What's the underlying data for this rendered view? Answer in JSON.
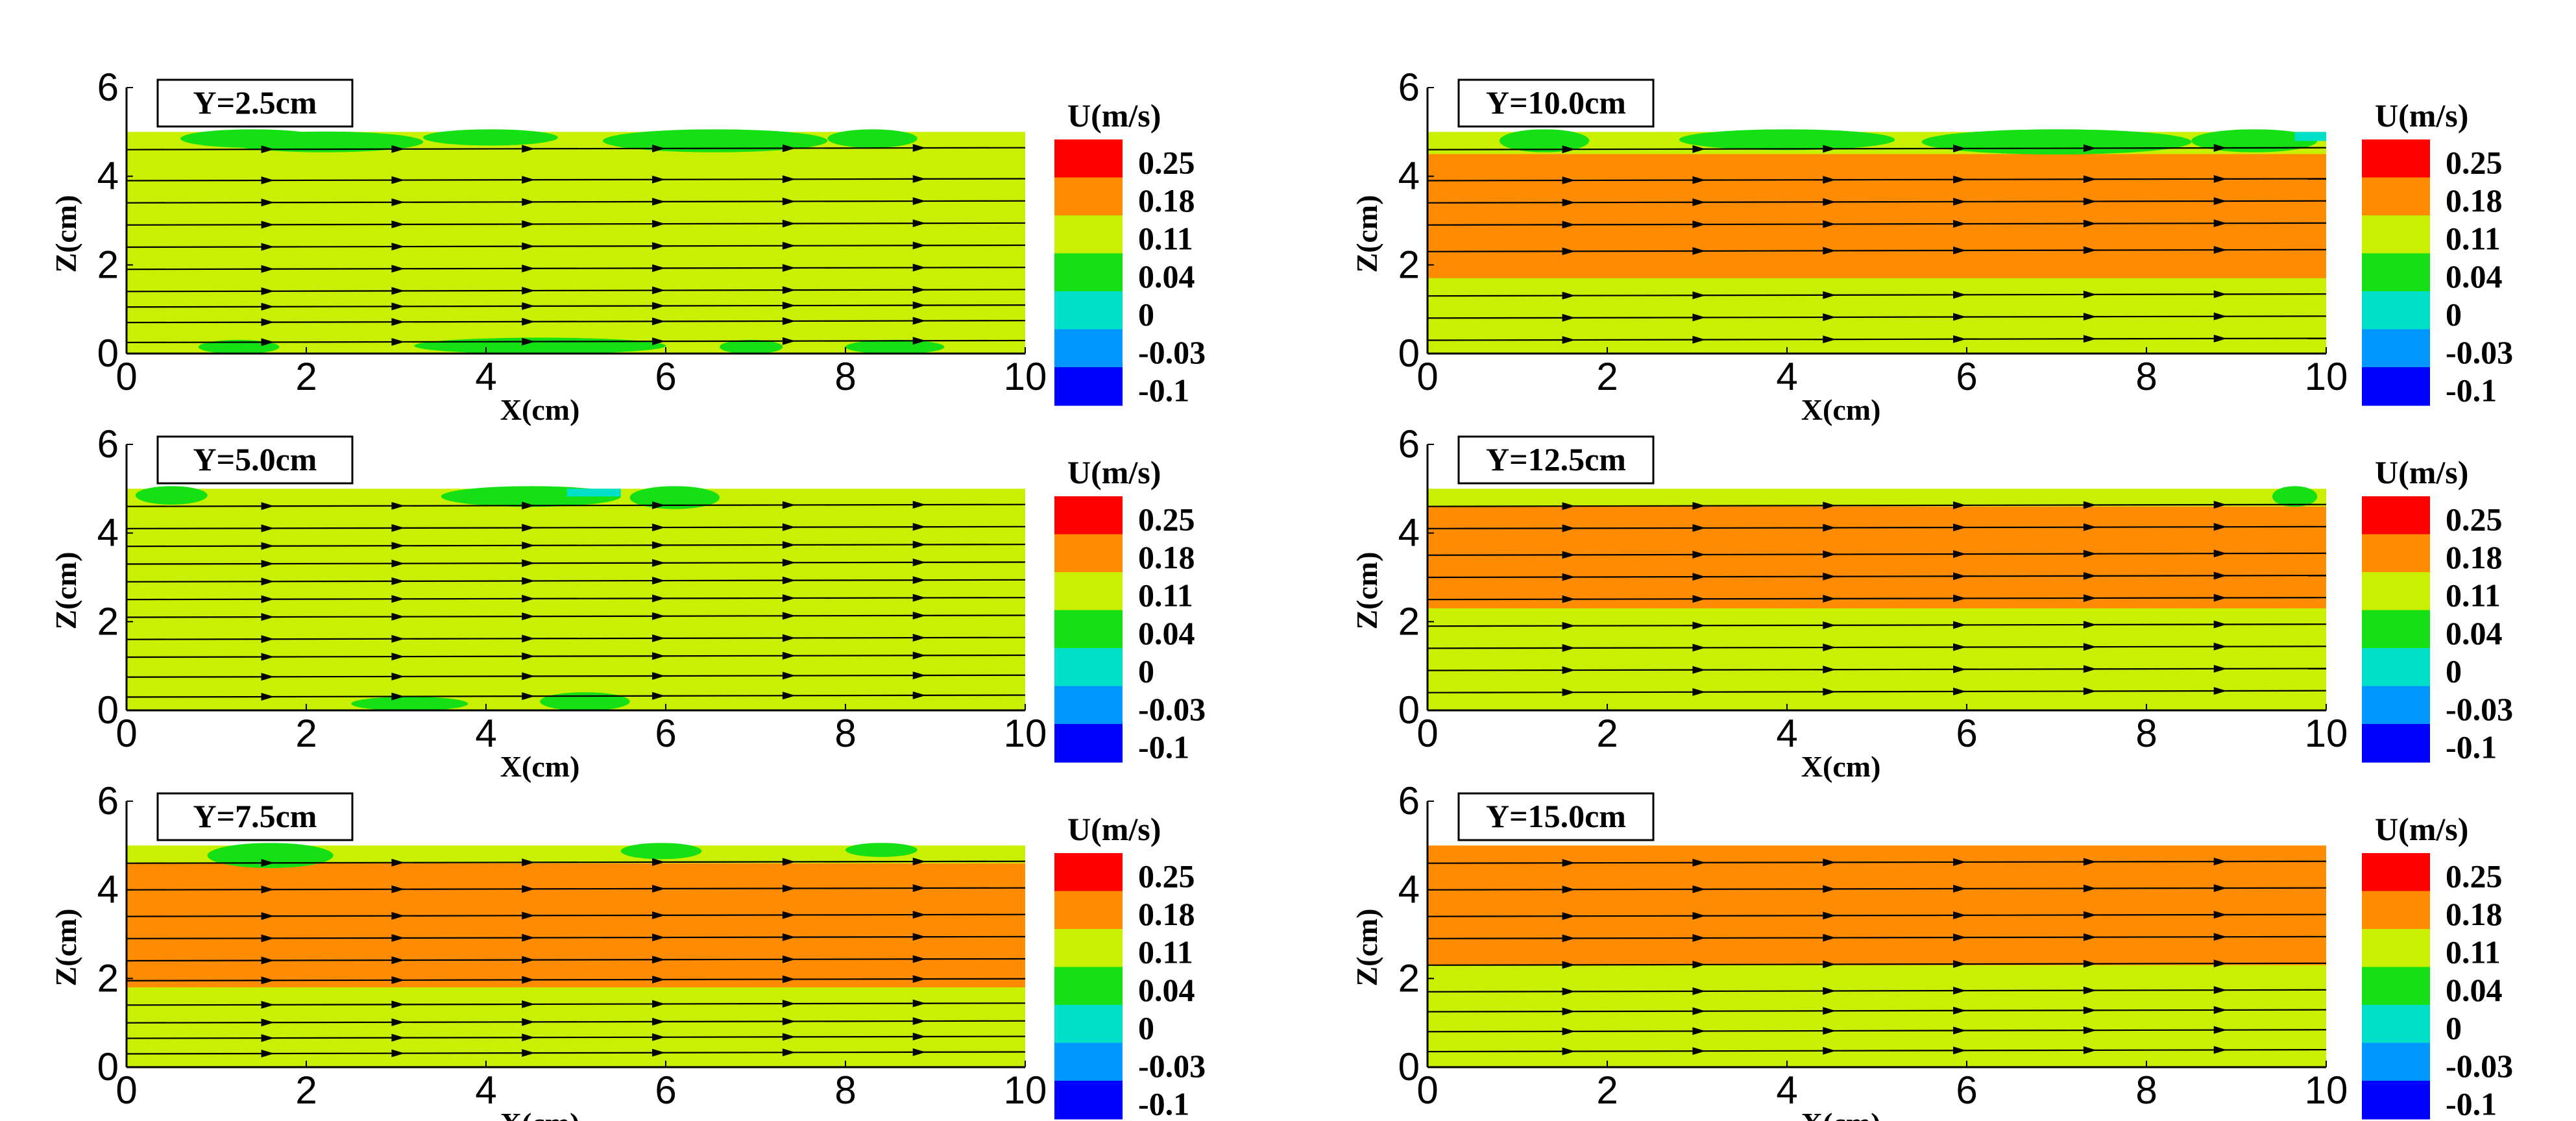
{
  "figure": {
    "x_axis_label": "X(cm)",
    "z_axis_label": "Z(cm)",
    "colorbar_title": "U(m/s)",
    "x_ticks": [
      "0",
      "2",
      "4",
      "6",
      "8",
      "10"
    ],
    "z_ticks": [
      "0",
      "2",
      "4",
      "6"
    ],
    "colorbar_levels": [
      "0.25",
      "0.18",
      "0.11",
      "0.04",
      "0",
      "-0.03",
      "-0.1"
    ],
    "colorbar_colors": [
      "#ff0000",
      "#ff8c00",
      "#c8f000",
      "#14e014",
      "#00e0c8",
      "#0096ff",
      "#0000ff"
    ],
    "field_colors": {
      "yellow_green": "#c8f000",
      "orange": "#ff8c00",
      "green": "#14e014",
      "cyan": "#00e0c8"
    }
  },
  "chart_data": [
    {
      "type": "heatmap",
      "title": "Y=2.5cm",
      "xlabel": "X(cm)",
      "ylabel": "Z(cm)",
      "xlim": [
        0,
        10
      ],
      "ylim": [
        0,
        6
      ],
      "domain_z": [
        0,
        5
      ],
      "colorbar": {
        "title": "U(m/s)",
        "levels": [
          0.25,
          0.18,
          0.11,
          0.04,
          0,
          -0.03,
          -0.1
        ]
      },
      "regions": [
        {
          "band": "full",
          "z": [
            0,
            5
          ],
          "u_level": "0.11-0.18",
          "color": "#c8f000"
        },
        {
          "band": "top-patches",
          "u_level": "0.04-0.11",
          "color": "#14e014"
        },
        {
          "band": "bottom-patches",
          "u_level": "0.04-0.11",
          "color": "#14e014"
        }
      ],
      "streamline_z": [
        0.25,
        0.7,
        1.05,
        1.4,
        1.9,
        2.4,
        2.9,
        3.4,
        3.9,
        4.6
      ]
    },
    {
      "type": "heatmap",
      "title": "Y=10.0cm",
      "xlabel": "X(cm)",
      "ylabel": "Z(cm)",
      "xlim": [
        0,
        10
      ],
      "ylim": [
        0,
        6
      ],
      "domain_z": [
        0,
        5
      ],
      "colorbar": {
        "title": "U(m/s)",
        "levels": [
          0.25,
          0.18,
          0.11,
          0.04,
          0,
          -0.03,
          -0.1
        ]
      },
      "regions": [
        {
          "band": "lower",
          "z": [
            0,
            1.7
          ],
          "u_level": "0.11-0.18",
          "color": "#c8f000"
        },
        {
          "band": "middle",
          "z": [
            1.7,
            4.5
          ],
          "u_level": "0.18-0.25",
          "color": "#ff8c00"
        },
        {
          "band": "upper",
          "z": [
            4.5,
            5
          ],
          "u_level": "0.11-0.18",
          "color": "#c8f000"
        },
        {
          "band": "top-patches",
          "u_level": "0.04-0.11",
          "color": "#14e014"
        }
      ],
      "streamline_z": [
        0.3,
        0.8,
        1.3,
        2.3,
        2.9,
        3.4,
        3.9,
        4.6
      ]
    },
    {
      "type": "heatmap",
      "title": "Y=5.0cm",
      "xlabel": "X(cm)",
      "ylabel": "Z(cm)",
      "xlim": [
        0,
        10
      ],
      "ylim": [
        0,
        6
      ],
      "domain_z": [
        0,
        5
      ],
      "colorbar": {
        "title": "U(m/s)",
        "levels": [
          0.25,
          0.18,
          0.11,
          0.04,
          0,
          -0.03,
          -0.1
        ]
      },
      "regions": [
        {
          "band": "full",
          "z": [
            0,
            5
          ],
          "u_level": "0.11-0.18",
          "color": "#c8f000"
        },
        {
          "band": "top-patches",
          "u_level": "0.04-0.11",
          "color": "#14e014"
        },
        {
          "band": "bottom-patches",
          "u_level": "0.04-0.11",
          "color": "#14e014"
        }
      ],
      "streamline_z": [
        0.3,
        0.75,
        1.2,
        1.6,
        2.1,
        2.5,
        2.9,
        3.3,
        3.7,
        4.1,
        4.6
      ]
    },
    {
      "type": "heatmap",
      "title": "Y=12.5cm",
      "xlabel": "X(cm)",
      "ylabel": "Z(cm)",
      "xlim": [
        0,
        10
      ],
      "ylim": [
        0,
        6
      ],
      "domain_z": [
        0,
        5
      ],
      "colorbar": {
        "title": "U(m/s)",
        "levels": [
          0.25,
          0.18,
          0.11,
          0.04,
          0,
          -0.03,
          -0.1
        ]
      },
      "regions": [
        {
          "band": "lower",
          "z": [
            0,
            2.3
          ],
          "u_level": "0.11-0.18",
          "color": "#c8f000"
        },
        {
          "band": "middle",
          "z": [
            2.3,
            4.6
          ],
          "u_level": "0.18-0.25",
          "color": "#ff8c00"
        },
        {
          "band": "upper",
          "z": [
            4.6,
            5
          ],
          "u_level": "0.11-0.18",
          "color": "#c8f000"
        },
        {
          "band": "top-patch",
          "u_level": "0.04-0.11",
          "color": "#14e014"
        }
      ],
      "streamline_z": [
        0.4,
        0.9,
        1.4,
        1.9,
        2.5,
        3.0,
        3.5,
        4.1,
        4.6
      ]
    },
    {
      "type": "heatmap",
      "title": "Y=7.5cm",
      "xlabel": "X(cm)",
      "ylabel": "Z(cm)",
      "xlim": [
        0,
        10
      ],
      "ylim": [
        0,
        6
      ],
      "domain_z": [
        0,
        5
      ],
      "colorbar": {
        "title": "U(m/s)",
        "levels": [
          0.25,
          0.18,
          0.11,
          0.04,
          0,
          -0.03,
          -0.1
        ]
      },
      "regions": [
        {
          "band": "lower",
          "z": [
            0,
            1.8
          ],
          "u_level": "0.11-0.18",
          "color": "#c8f000"
        },
        {
          "band": "middle",
          "z": [
            1.8,
            4.6
          ],
          "u_level": "0.18-0.25",
          "color": "#ff8c00"
        },
        {
          "band": "upper",
          "z": [
            4.6,
            5
          ],
          "u_level": "0.11-0.18",
          "color": "#c8f000"
        },
        {
          "band": "top-patch",
          "u_level": "0.04-0.11",
          "color": "#14e014"
        }
      ],
      "streamline_z": [
        0.3,
        0.65,
        1.0,
        1.4,
        1.95,
        2.4,
        2.9,
        3.4,
        4.0,
        4.6
      ]
    },
    {
      "type": "heatmap",
      "title": "Y=15.0cm",
      "xlabel": "X(cm)",
      "ylabel": "Z(cm)",
      "xlim": [
        0,
        10
      ],
      "ylim": [
        0,
        6
      ],
      "domain_z": [
        0,
        5
      ],
      "colorbar": {
        "title": "U(m/s)",
        "levels": [
          0.25,
          0.18,
          0.11,
          0.04,
          0,
          -0.03,
          -0.1
        ]
      },
      "regions": [
        {
          "band": "lower",
          "z": [
            0,
            2.3
          ],
          "u_level": "0.11-0.18",
          "color": "#c8f000"
        },
        {
          "band": "upper",
          "z": [
            2.3,
            5
          ],
          "u_level": "0.18-0.25",
          "color": "#ff8c00"
        }
      ],
      "streamline_z": [
        0.35,
        0.8,
        1.25,
        1.7,
        2.3,
        2.9,
        3.4,
        4.0,
        4.6
      ]
    }
  ]
}
